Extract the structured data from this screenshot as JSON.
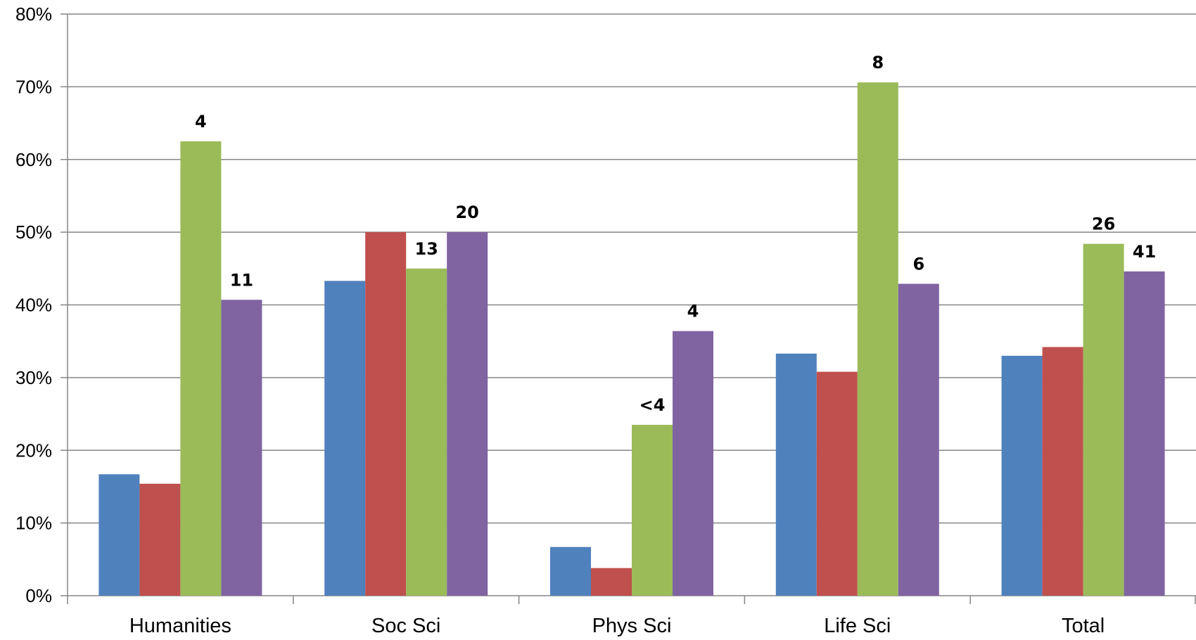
{
  "chart_data": {
    "type": "bar",
    "categories": [
      "Humanities",
      "Soc Sci",
      "Phys Sci",
      "Life Sci",
      "Total"
    ],
    "series": [
      {
        "color": "#4f81bd",
        "values": [
          16.7,
          43.3,
          6.7,
          33.3,
          33.0
        ]
      },
      {
        "color": "#c0504d",
        "values": [
          15.4,
          50.0,
          3.8,
          30.8,
          34.2
        ]
      },
      {
        "color": "#9bbb59",
        "values": [
          62.5,
          45.0,
          23.5,
          70.6,
          48.4
        ],
        "labels": [
          "4",
          "13",
          "<4",
          "8",
          "26"
        ]
      },
      {
        "color": "#8064a2",
        "values": [
          40.7,
          50.0,
          36.4,
          42.9,
          44.6
        ],
        "labels": [
          "11",
          "20",
          "4",
          "6",
          "41"
        ]
      }
    ],
    "y_ticks": [
      "0%",
      "10%",
      "20%",
      "30%",
      "40%",
      "50%",
      "60%",
      "70%",
      "80%"
    ],
    "ylim": [
      0,
      80
    ],
    "y_unit": "%",
    "grid": true,
    "gridline_color": "#868686",
    "axis_color": "#868686",
    "title": "",
    "xlabel": "",
    "ylabel": ""
  }
}
